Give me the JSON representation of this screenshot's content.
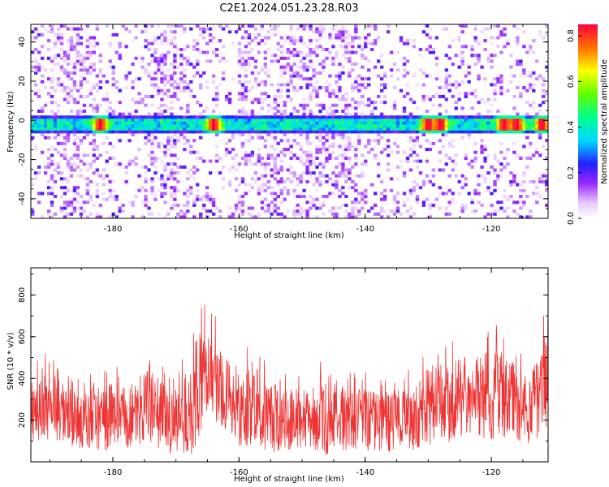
{
  "title": "C2E1.2024.051.23.28.R03",
  "chart_data": [
    {
      "type": "heatmap",
      "xlabel": "Height of straight line (km)",
      "ylabel": "Frequency (Hz)",
      "xlim": [
        -193,
        -111
      ],
      "ylim": [
        -50,
        49
      ],
      "x_ticks": [
        -180,
        -160,
        -140,
        -120
      ],
      "y_ticks": [
        -40,
        -20,
        0,
        20,
        40
      ],
      "colorbar": {
        "label": "Normalized spectral amplitude",
        "range": [
          0.0,
          0.85
        ],
        "ticks": [
          "0.0",
          "0.2",
          "0.4",
          "0.6",
          "0.8"
        ],
        "colormap": "white-violet-blue-cyan-green-yellow-red"
      },
      "features": {
        "main_band_frequency_hz": -2,
        "main_band_width_hz": 7,
        "peak_heights_km": [
          -182,
          -164,
          -130,
          -128,
          -118,
          -116,
          -112
        ],
        "background": "scattered low-amplitude violet patches"
      }
    },
    {
      "type": "line",
      "xlabel": "Height of straight line (km)",
      "ylabel": "SNR (10 * v/v)",
      "xlim": [
        -193,
        -111
      ],
      "ylim": [
        0,
        930
      ],
      "x_ticks": [
        -180,
        -160,
        -140,
        -120
      ],
      "y_ticks": [
        200,
        400,
        600,
        800
      ],
      "series": [
        {
          "color": "#ee3333",
          "x": [
            -193,
            -191,
            -189,
            -187,
            -185,
            -183,
            -181,
            -179,
            -177,
            -175,
            -173,
            -171,
            -169,
            -167.5,
            -166.5,
            -165,
            -164,
            -162,
            -160,
            -158,
            -156,
            -154,
            -152,
            -150,
            -148,
            -146,
            -144,
            -142,
            -140,
            -138,
            -136,
            -134,
            -132,
            -130,
            -128,
            -126,
            -124,
            -122,
            -120,
            -118,
            -116,
            -114,
            -112,
            -111
          ],
          "y_base": [
            250,
            270,
            260,
            210,
            200,
            220,
            210,
            240,
            200,
            260,
            230,
            180,
            230,
            240,
            380,
            430,
            380,
            330,
            250,
            280,
            230,
            200,
            200,
            210,
            220,
            230,
            210,
            200,
            210,
            190,
            200,
            200,
            210,
            260,
            290,
            300,
            310,
            320,
            330,
            320,
            280,
            250,
            330,
            420
          ],
          "y_max": [
            500,
            520,
            510,
            440,
            420,
            480,
            460,
            480,
            430,
            560,
            520,
            420,
            520,
            560,
            830,
            760,
            720,
            600,
            520,
            600,
            510,
            460,
            430,
            440,
            480,
            560,
            470,
            420,
            460,
            420,
            440,
            440,
            460,
            560,
            600,
            620,
            620,
            640,
            680,
            640,
            560,
            520,
            650,
            920
          ]
        }
      ]
    }
  ]
}
